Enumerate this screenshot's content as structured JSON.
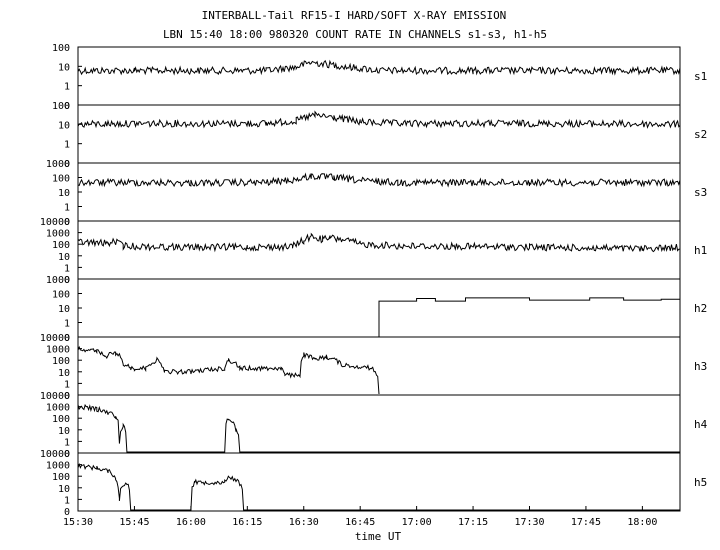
{
  "chart_data": {
    "type": "line",
    "title": "INTERBALL-Tail RF15-I HARD/SOFT X-RAY EMISSION",
    "subtitle": "LBN 15:40 18:00 980320  COUNT RATE IN CHANNELS s1-s3, h1-h5",
    "xlabel": "time UT",
    "x_ticks": [
      "15:30",
      "15:45",
      "16:00",
      "16:15",
      "16:30",
      "16:45",
      "17:00",
      "17:15",
      "17:30",
      "17:45",
      "18:00"
    ],
    "xlim": [
      "15:30",
      "18:10"
    ],
    "y_scale": "log",
    "grid": false,
    "panels": [
      {
        "name": "s1",
        "y_ticks": [
          "100",
          "10",
          "1",
          "0"
        ],
        "ylim": [
          0,
          100
        ],
        "points": [
          [
            "15:30",
            6
          ],
          [
            "15:45",
            6
          ],
          [
            "16:00",
            6
          ],
          [
            "16:20",
            6
          ],
          [
            "16:28",
            9
          ],
          [
            "16:32",
            16
          ],
          [
            "16:36",
            13
          ],
          [
            "16:42",
            9
          ],
          [
            "16:50",
            6
          ],
          [
            "17:15",
            6
          ],
          [
            "17:45",
            6
          ],
          [
            "18:10",
            6
          ]
        ]
      },
      {
        "name": "s2",
        "y_ticks": [
          "100",
          "10",
          "1",
          "0"
        ],
        "ylim": [
          0,
          100
        ],
        "points": [
          [
            "15:30",
            10
          ],
          [
            "15:45",
            11
          ],
          [
            "16:00",
            11
          ],
          [
            "16:20",
            11
          ],
          [
            "16:28",
            15
          ],
          [
            "16:33",
            30
          ],
          [
            "16:38",
            22
          ],
          [
            "16:45",
            13
          ],
          [
            "16:55",
            11
          ],
          [
            "17:30",
            11
          ],
          [
            "18:10",
            10
          ]
        ]
      },
      {
        "name": "s3",
        "y_ticks": [
          "1000",
          "100",
          "10",
          "1",
          "0"
        ],
        "ylim": [
          0,
          1000
        ],
        "points": [
          [
            "15:30",
            45
          ],
          [
            "15:45",
            45
          ],
          [
            "16:00",
            42
          ],
          [
            "16:20",
            45
          ],
          [
            "16:28",
            70
          ],
          [
            "16:32",
            120
          ],
          [
            "16:38",
            100
          ],
          [
            "16:45",
            60
          ],
          [
            "16:55",
            45
          ],
          [
            "17:30",
            45
          ],
          [
            "18:10",
            45
          ]
        ]
      },
      {
        "name": "h1",
        "y_ticks": [
          "10000",
          "1000",
          "100",
          "10",
          "1",
          "0"
        ],
        "ylim": [
          0,
          10000
        ],
        "points": [
          [
            "15:30",
            150
          ],
          [
            "15:38",
            120
          ],
          [
            "15:40",
            160
          ],
          [
            "15:42",
            70
          ],
          [
            "15:50",
            60
          ],
          [
            "16:00",
            55
          ],
          [
            "16:15",
            55
          ],
          [
            "16:27",
            60
          ],
          [
            "16:30",
            200
          ],
          [
            "16:32",
            450
          ],
          [
            "16:35",
            250
          ],
          [
            "16:37",
            350
          ],
          [
            "16:40",
            250
          ],
          [
            "16:45",
            100
          ],
          [
            "16:55",
            70
          ],
          [
            "17:30",
            55
          ],
          [
            "18:00",
            40
          ],
          [
            "18:10",
            55
          ]
        ]
      },
      {
        "name": "h2",
        "y_ticks": [
          "1000",
          "100",
          "10",
          "1",
          "0"
        ],
        "ylim": [
          0,
          1000
        ],
        "steps": [
          [
            "16:50",
            30
          ],
          [
            "17:00",
            45
          ],
          [
            "17:05",
            30
          ],
          [
            "17:13",
            50
          ],
          [
            "17:30",
            35
          ],
          [
            "17:46",
            50
          ],
          [
            "17:55",
            35
          ],
          [
            "18:05",
            40
          ],
          [
            "18:10",
            40
          ]
        ]
      },
      {
        "name": "h3",
        "y_ticks": [
          "10000",
          "1000",
          "100",
          "10",
          "1",
          "0"
        ],
        "ylim": [
          0,
          10000
        ],
        "points": [
          [
            "15:30",
            1000
          ],
          [
            "15:35",
            600
          ],
          [
            "15:37",
            200
          ],
          [
            "15:40",
            400
          ],
          [
            "15:42",
            50
          ],
          [
            "15:44",
            20
          ],
          [
            "15:45",
            20
          ],
          [
            "15:48",
            20
          ],
          [
            "15:51",
            100
          ],
          [
            "15:53",
            10
          ],
          [
            "16:00",
            10
          ],
          [
            "16:09",
            20
          ],
          [
            "16:10",
            100
          ],
          [
            "16:13",
            20
          ],
          [
            "16:24",
            20
          ],
          [
            "16:25",
            5
          ],
          [
            "16:29",
            5
          ],
          [
            "16:30",
            300
          ],
          [
            "16:33",
            100
          ],
          [
            "16:36",
            200
          ],
          [
            "16:40",
            40
          ],
          [
            "16:48",
            20
          ],
          [
            "16:50",
            0
          ]
        ]
      },
      {
        "name": "h4",
        "y_ticks": [
          "10000",
          "1000",
          "100",
          "10",
          "1",
          "0"
        ],
        "ylim": [
          0,
          10000
        ],
        "points": [
          [
            "15:30",
            1000
          ],
          [
            "15:35",
            600
          ],
          [
            "15:38",
            300
          ],
          [
            "15:40",
            150
          ],
          [
            "15:41",
            1
          ],
          [
            "15:42",
            20
          ],
          [
            "15:43",
            0
          ],
          [
            "16:09",
            0
          ],
          [
            "16:10",
            100
          ],
          [
            "16:12",
            10
          ],
          [
            "16:13",
            0
          ],
          [
            "18:10",
            0
          ]
        ]
      },
      {
        "name": "h5",
        "y_ticks": [
          "10000",
          "1000",
          "100",
          "10",
          "1",
          "0"
        ],
        "ylim": [
          0,
          10000
        ],
        "points": [
          [
            "15:30",
            800
          ],
          [
            "15:35",
            500
          ],
          [
            "15:38",
            300
          ],
          [
            "15:40",
            50
          ],
          [
            "15:41",
            1
          ],
          [
            "15:43",
            30
          ],
          [
            "15:44",
            0
          ],
          [
            "16:00",
            0
          ],
          [
            "16:01",
            30
          ],
          [
            "16:09",
            30
          ],
          [
            "16:10",
            100
          ],
          [
            "16:13",
            20
          ],
          [
            "16:14",
            0
          ],
          [
            "18:10",
            0
          ]
        ]
      }
    ]
  }
}
